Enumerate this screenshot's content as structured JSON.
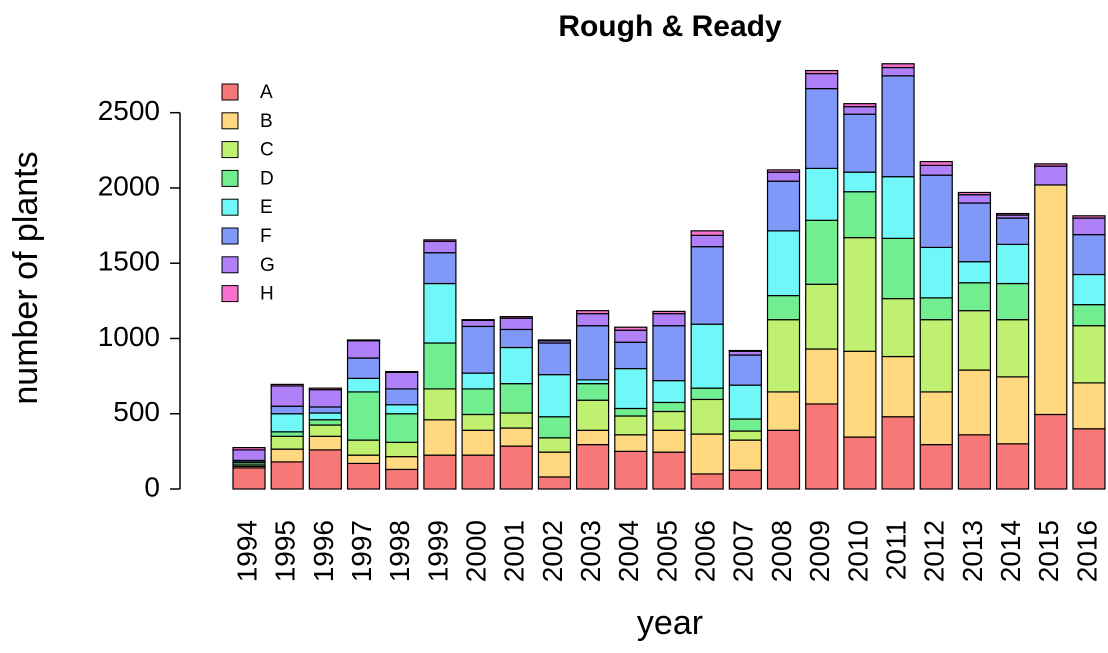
{
  "chart_data": {
    "type": "stacked_bar",
    "title": "Rough & Ready",
    "x_label": "year",
    "y_label": "number of plants",
    "categories": [
      "1994",
      "1995",
      "1996",
      "1997",
      "1998",
      "1999",
      "2000",
      "2001",
      "2002",
      "2003",
      "2004",
      "2005",
      "2006",
      "2007",
      "2008",
      "2009",
      "2010",
      "2011",
      "2012",
      "2013",
      "2014",
      "2015",
      "2016"
    ],
    "series": [
      {
        "name": "A",
        "color": "#f87878",
        "values": [
          140,
          180,
          260,
          170,
          130,
          225,
          225,
          285,
          80,
          295,
          250,
          245,
          100,
          125,
          390,
          565,
          345,
          480,
          295,
          360,
          300,
          495,
          400
        ]
      },
      {
        "name": "B",
        "color": "#ffd880",
        "values": [
          10,
          85,
          90,
          55,
          85,
          235,
          165,
          120,
          165,
          95,
          110,
          145,
          265,
          200,
          255,
          365,
          570,
          400,
          350,
          430,
          445,
          1525,
          305
        ]
      },
      {
        "name": "C",
        "color": "#c0f070",
        "values": [
          10,
          85,
          75,
          100,
          95,
          205,
          105,
          100,
          95,
          200,
          125,
          125,
          230,
          60,
          480,
          430,
          755,
          385,
          480,
          395,
          380,
          0,
          380
        ]
      },
      {
        "name": "D",
        "color": "#70ee90",
        "values": [
          15,
          30,
          35,
          320,
          190,
          305,
          170,
          195,
          140,
          110,
          50,
          60,
          75,
          80,
          160,
          425,
          305,
          400,
          145,
          185,
          240,
          0,
          140
        ]
      },
      {
        "name": "E",
        "color": "#70f8f8",
        "values": [
          5,
          120,
          45,
          90,
          60,
          395,
          105,
          240,
          280,
          25,
          265,
          145,
          425,
          225,
          430,
          345,
          130,
          410,
          335,
          140,
          260,
          0,
          200
        ]
      },
      {
        "name": "F",
        "color": "#8098f8",
        "values": [
          10,
          50,
          40,
          135,
          105,
          205,
          310,
          120,
          210,
          360,
          175,
          365,
          515,
          200,
          330,
          530,
          385,
          670,
          480,
          390,
          175,
          0,
          265
        ]
      },
      {
        "name": "G",
        "color": "#b080f8",
        "values": [
          70,
          135,
          115,
          115,
          110,
          75,
          40,
          75,
          15,
          80,
          80,
          80,
          75,
          25,
          60,
          100,
          50,
          55,
          65,
          55,
          20,
          125,
          110
        ]
      },
      {
        "name": "H",
        "color": "#f870d0",
        "values": [
          15,
          10,
          10,
          5,
          5,
          10,
          5,
          10,
          5,
          20,
          20,
          15,
          30,
          5,
          15,
          20,
          20,
          25,
          25,
          15,
          10,
          15,
          15
        ]
      }
    ],
    "ylim": [
      0,
      2870
    ],
    "yticks": [
      0,
      500,
      1000,
      1500,
      2000,
      2500
    ],
    "legend": "top-left"
  }
}
